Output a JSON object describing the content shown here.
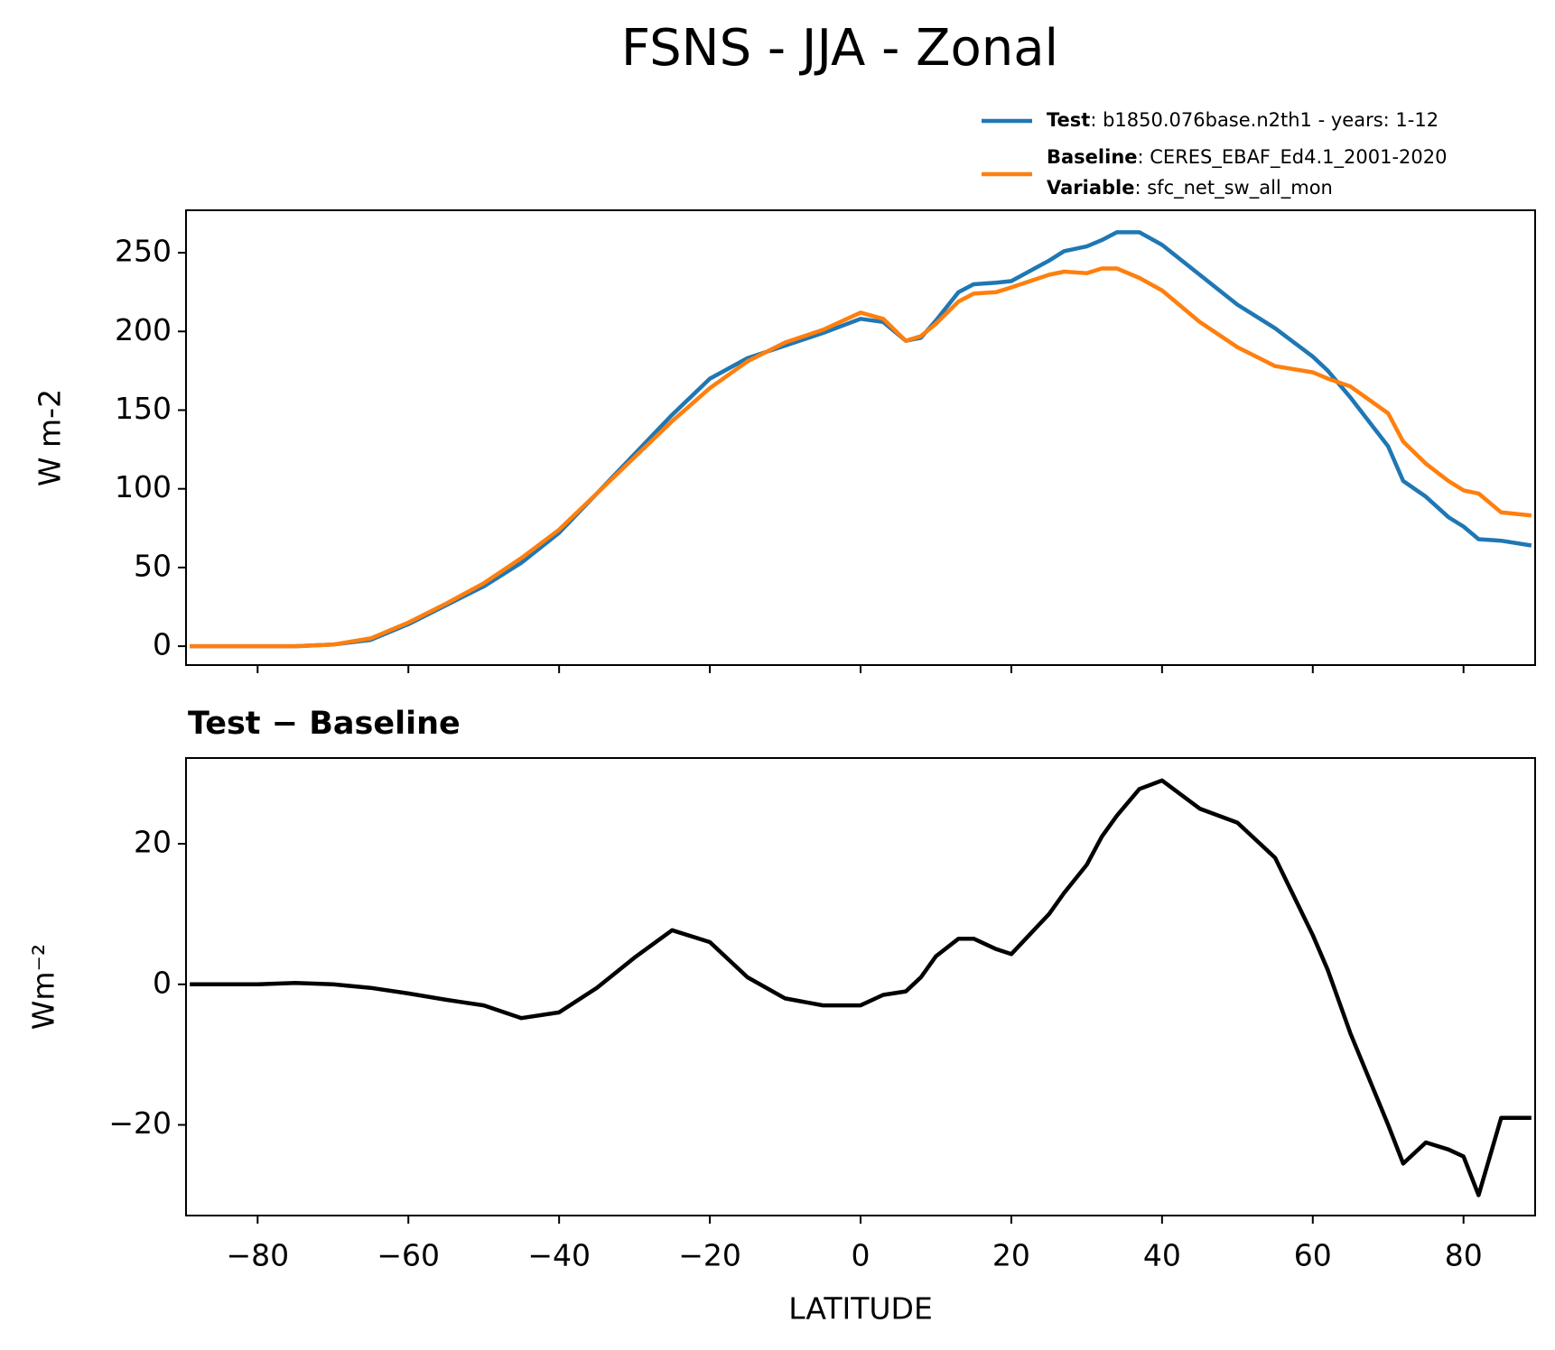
{
  "title": "FSNS - JJA - Zonal",
  "chart_data": [
    {
      "type": "line",
      "ylabel": "W m-2",
      "legend": {
        "loc": "upper right",
        "note": {
          "key": "Variable",
          "text": ": sfc_net_sw_all_mon"
        }
      },
      "x": [
        -89,
        -85,
        -80,
        -75,
        -70,
        -65,
        -60,
        -55,
        -50,
        -45,
        -40,
        -35,
        -30,
        -25,
        -20,
        -15,
        -10,
        -5,
        0,
        3,
        6,
        8,
        10,
        13,
        15,
        18,
        20,
        25,
        27,
        30,
        32,
        34,
        37,
        40,
        45,
        50,
        55,
        60,
        62,
        65,
        70,
        72,
        75,
        78,
        80,
        82,
        85,
        89
      ],
      "series": [
        {
          "name": "Test",
          "text": ": b1850.076base.n2th1 - years: 1-12",
          "color": "#1f77b4",
          "values": [
            0,
            0,
            0,
            0,
            1,
            4,
            14,
            26,
            38,
            53,
            72,
            97,
            122,
            147,
            170,
            183,
            191,
            199,
            208,
            206,
            194,
            196,
            207,
            225,
            230,
            231,
            232,
            245,
            251,
            254,
            258,
            263,
            263,
            255,
            236,
            217,
            202,
            184,
            175,
            158,
            127,
            105,
            95,
            82,
            76,
            68,
            67,
            64
          ]
        },
        {
          "name": "Baseline",
          "text": ": CERES_EBAF_Ed4.1_2001-2020",
          "color": "#ff7f0e",
          "values": [
            0,
            0,
            0,
            0,
            1,
            5,
            15,
            27,
            40,
            56,
            74,
            97,
            120,
            143,
            164,
            181,
            193,
            201,
            212,
            208,
            194,
            197,
            205,
            219,
            224,
            225,
            228,
            236,
            238,
            237,
            240,
            240,
            234,
            226,
            206,
            190,
            178,
            174,
            170,
            165,
            148,
            130,
            116,
            105,
            99,
            97,
            85,
            83
          ]
        }
      ],
      "xlim": [
        -89.5,
        89.5
      ],
      "xticks": [
        -80,
        -60,
        -40,
        -20,
        0,
        20,
        40,
        60,
        80
      ],
      "ylim": [
        -12,
        277
      ],
      "yticks": [
        0,
        50,
        100,
        150,
        200,
        250
      ]
    },
    {
      "type": "line",
      "title": "Test − Baseline",
      "xlabel": "LATITUDE",
      "ylabel": "Wm⁻²",
      "x": [
        -89,
        -85,
        -80,
        -75,
        -70,
        -65,
        -60,
        -55,
        -50,
        -45,
        -40,
        -35,
        -30,
        -25,
        -20,
        -15,
        -10,
        -5,
        0,
        3,
        6,
        8,
        10,
        13,
        15,
        18,
        20,
        25,
        27,
        30,
        32,
        34,
        37,
        40,
        45,
        50,
        55,
        60,
        62,
        65,
        70,
        72,
        75,
        78,
        80,
        82,
        85,
        89
      ],
      "series": [
        {
          "color": "#000000",
          "values": [
            0,
            0,
            0,
            0.2,
            0,
            -0.5,
            -1.3,
            -2.2,
            -3,
            -4.8,
            -4,
            -0.5,
            3.8,
            7.7,
            6,
            1,
            -2,
            -3,
            -3,
            -1.5,
            -1,
            1,
            4,
            6.5,
            6.5,
            5,
            4.3,
            10,
            13,
            17,
            21,
            24,
            27.8,
            29,
            25,
            23,
            18,
            7,
            2,
            -7,
            -20,
            -25.5,
            -22.5,
            -23.5,
            -24.5,
            -30,
            -19,
            -19
          ]
        }
      ],
      "xlim": [
        -89.5,
        89.5
      ],
      "xticks": [
        {
          "value": -80,
          "label": "−80"
        },
        {
          "value": -60,
          "label": "−60"
        },
        {
          "value": -40,
          "label": "−40"
        },
        {
          "value": -20,
          "label": "−20"
        },
        0,
        20,
        40,
        60,
        80
      ],
      "ylim": [
        -32.9,
        32.2
      ],
      "yticks": [
        {
          "value": -20,
          "label": "−20"
        },
        0,
        20
      ]
    }
  ]
}
